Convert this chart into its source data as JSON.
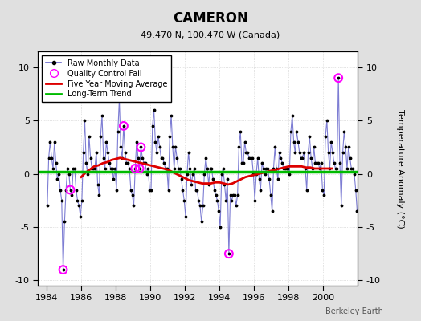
{
  "title": "CAMERON",
  "subtitle": "49.470 N, 100.470 W (Canada)",
  "ylabel": "Temperature Anomaly (°C)",
  "credit": "Berkeley Earth",
  "xlim": [
    1983.5,
    2002.0
  ],
  "ylim": [
    -10.5,
    11.5
  ],
  "yticks": [
    -10,
    -5,
    0,
    5,
    10
  ],
  "xticks": [
    1984,
    1986,
    1988,
    1990,
    1992,
    1994,
    1996,
    1998,
    2000
  ],
  "background_color": "#e0e0e0",
  "plot_bg_color": "#ffffff",
  "raw_line_color": "#6666cc",
  "raw_marker_color": "#000000",
  "moving_avg_color": "#dd0000",
  "trend_color": "#00bb00",
  "qc_fail_color": "#ff00ff",
  "raw_data_years": [
    1984.042,
    1984.125,
    1984.208,
    1984.292,
    1984.375,
    1984.458,
    1984.542,
    1984.625,
    1984.708,
    1984.792,
    1984.875,
    1984.958,
    1985.042,
    1985.125,
    1985.208,
    1985.292,
    1985.375,
    1985.458,
    1985.542,
    1985.625,
    1985.708,
    1985.792,
    1985.875,
    1985.958,
    1986.042,
    1986.125,
    1986.208,
    1986.292,
    1986.375,
    1986.458,
    1986.542,
    1986.625,
    1986.708,
    1986.792,
    1986.875,
    1986.958,
    1987.042,
    1987.125,
    1987.208,
    1987.292,
    1987.375,
    1987.458,
    1987.542,
    1987.625,
    1987.708,
    1987.792,
    1987.875,
    1987.958,
    1988.042,
    1988.125,
    1988.208,
    1988.292,
    1988.375,
    1988.458,
    1988.542,
    1988.625,
    1988.708,
    1988.792,
    1988.875,
    1988.958,
    1989.042,
    1989.125,
    1989.208,
    1989.292,
    1989.375,
    1989.458,
    1989.542,
    1989.625,
    1989.708,
    1989.792,
    1989.875,
    1989.958,
    1990.042,
    1990.125,
    1990.208,
    1990.292,
    1990.375,
    1990.458,
    1990.542,
    1990.625,
    1990.708,
    1990.792,
    1990.875,
    1990.958,
    1991.042,
    1991.125,
    1991.208,
    1991.292,
    1991.375,
    1991.458,
    1991.542,
    1991.625,
    1991.708,
    1991.792,
    1991.875,
    1991.958,
    1992.042,
    1992.125,
    1992.208,
    1992.292,
    1992.375,
    1992.458,
    1992.542,
    1992.625,
    1992.708,
    1992.792,
    1992.875,
    1992.958,
    1993.042,
    1993.125,
    1993.208,
    1993.292,
    1993.375,
    1993.458,
    1993.542,
    1993.625,
    1993.708,
    1993.792,
    1993.875,
    1993.958,
    1994.042,
    1994.125,
    1994.208,
    1994.292,
    1994.375,
    1994.458,
    1994.542,
    1994.625,
    1994.708,
    1994.792,
    1994.875,
    1994.958,
    1995.042,
    1995.125,
    1995.208,
    1995.292,
    1995.375,
    1995.458,
    1995.542,
    1995.625,
    1995.708,
    1995.792,
    1995.875,
    1995.958,
    1996.042,
    1996.125,
    1996.208,
    1996.292,
    1996.375,
    1996.458,
    1996.542,
    1996.625,
    1996.708,
    1996.792,
    1996.875,
    1996.958,
    1997.042,
    1997.125,
    1997.208,
    1997.292,
    1997.375,
    1997.458,
    1997.542,
    1997.625,
    1997.708,
    1997.792,
    1997.875,
    1997.958,
    1998.042,
    1998.125,
    1998.208,
    1998.292,
    1998.375,
    1998.458,
    1998.542,
    1998.625,
    1998.708,
    1998.792,
    1998.875,
    1998.958,
    1999.042,
    1999.125,
    1999.208,
    1999.292,
    1999.375,
    1999.458,
    1999.542,
    1999.625,
    1999.708,
    1999.792,
    1999.875,
    1999.958,
    2000.042,
    2000.125,
    2000.208,
    2000.292,
    2000.375,
    2000.458,
    2000.542,
    2000.625,
    2000.708,
    2000.792,
    2000.875,
    2000.958,
    2001.042,
    2001.125,
    2001.208,
    2001.292,
    2001.375,
    2001.458,
    2001.542,
    2001.625,
    2001.708,
    2001.792,
    2001.875,
    2001.958
  ],
  "raw_data_values": [
    -3.0,
    1.5,
    3.0,
    1.5,
    0.5,
    3.0,
    1.0,
    -0.5,
    0.0,
    -1.5,
    -2.5,
    -9.0,
    -4.5,
    -1.5,
    0.5,
    0.0,
    -1.5,
    -2.0,
    0.5,
    0.5,
    -1.5,
    -2.5,
    -3.0,
    -4.0,
    -2.5,
    2.0,
    5.0,
    1.0,
    0.0,
    3.5,
    1.5,
    0.5,
    0.5,
    0.5,
    2.0,
    -1.0,
    -2.0,
    3.5,
    5.5,
    1.5,
    0.5,
    3.0,
    2.0,
    1.0,
    0.5,
    0.5,
    -0.5,
    0.5,
    -1.5,
    4.0,
    7.0,
    2.5,
    1.5,
    4.5,
    2.0,
    1.0,
    1.0,
    0.5,
    -1.5,
    -2.0,
    -3.0,
    0.5,
    3.0,
    1.5,
    0.5,
    2.5,
    1.5,
    1.0,
    1.0,
    0.0,
    0.5,
    -1.5,
    -1.5,
    4.5,
    6.0,
    3.0,
    2.0,
    3.5,
    2.5,
    1.5,
    1.5,
    1.0,
    0.5,
    0.5,
    -1.5,
    3.5,
    5.5,
    2.5,
    0.5,
    2.5,
    1.5,
    0.5,
    0.5,
    -0.5,
    -1.5,
    -2.5,
    -4.0,
    0.0,
    2.0,
    0.5,
    -1.0,
    0.0,
    0.5,
    -1.5,
    -1.5,
    -2.5,
    -3.0,
    -4.5,
    -3.0,
    0.0,
    1.5,
    0.5,
    -1.0,
    0.5,
    0.5,
    -0.5,
    -1.5,
    -2.0,
    -2.5,
    -3.5,
    -5.0,
    0.0,
    0.5,
    -1.0,
    -2.5,
    -0.5,
    -7.5,
    -2.0,
    -2.5,
    -2.0,
    -2.0,
    -3.0,
    -2.0,
    2.5,
    4.0,
    1.0,
    1.0,
    3.0,
    2.0,
    2.0,
    1.5,
    1.5,
    1.5,
    0.0,
    -2.5,
    0.0,
    1.5,
    -0.5,
    -1.5,
    1.0,
    0.5,
    0.0,
    0.5,
    0.5,
    -0.5,
    -2.0,
    -3.5,
    0.5,
    2.5,
    0.5,
    -0.5,
    2.0,
    1.5,
    1.0,
    0.5,
    0.5,
    0.5,
    0.5,
    0.0,
    4.0,
    5.5,
    3.0,
    2.0,
    4.0,
    3.0,
    2.0,
    1.5,
    1.5,
    2.0,
    0.5,
    -1.5,
    2.0,
    3.5,
    1.5,
    0.5,
    2.5,
    1.0,
    1.0,
    1.0,
    0.5,
    1.0,
    -1.5,
    -2.0,
    3.5,
    5.0,
    2.0,
    0.5,
    3.0,
    2.0,
    1.0,
    0.5,
    0.5,
    9.0,
    1.0,
    -3.0,
    2.0,
    4.0,
    2.5,
    0.5,
    2.5,
    1.5,
    0.5,
    0.5,
    0.0,
    -1.5,
    -3.5
  ],
  "qc_fail_years": [
    1984.958,
    1985.375,
    1988.458,
    1989.125,
    1989.375,
    1989.458,
    1994.542,
    2000.875
  ],
  "qc_fail_values": [
    -9.0,
    -1.5,
    4.5,
    0.5,
    0.5,
    2.5,
    -7.5,
    9.0
  ],
  "moving_avg_years": [
    1986.0,
    1986.25,
    1986.5,
    1986.75,
    1987.0,
    1987.25,
    1987.5,
    1987.75,
    1988.0,
    1988.25,
    1988.5,
    1988.75,
    1989.0,
    1989.25,
    1989.5,
    1989.75,
    1990.0,
    1990.25,
    1990.5,
    1990.75,
    1991.0,
    1991.25,
    1991.5,
    1991.75,
    1992.0,
    1992.25,
    1992.5,
    1992.75,
    1993.0,
    1993.25,
    1993.5,
    1993.75,
    1994.0,
    1994.25,
    1994.5,
    1994.75,
    1995.0,
    1995.25,
    1995.5,
    1995.75,
    1996.0,
    1996.25,
    1996.5,
    1996.75,
    1997.0,
    1997.25,
    1997.5,
    1997.75,
    1998.0,
    1998.25,
    1998.5,
    1998.75,
    1999.0,
    1999.25,
    1999.5,
    1999.75,
    2000.0,
    2000.25,
    2000.5
  ],
  "moving_avg_values": [
    -0.3,
    0.1,
    0.4,
    0.7,
    0.8,
    1.0,
    1.1,
    1.3,
    1.4,
    1.5,
    1.4,
    1.3,
    1.2,
    1.1,
    1.0,
    0.9,
    0.8,
    0.7,
    0.6,
    0.5,
    0.4,
    0.2,
    0.0,
    -0.2,
    -0.4,
    -0.6,
    -0.7,
    -0.8,
    -0.9,
    -0.9,
    -0.9,
    -0.8,
    -0.8,
    -0.9,
    -1.0,
    -0.9,
    -0.7,
    -0.5,
    -0.3,
    -0.2,
    -0.1,
    0.0,
    0.1,
    0.2,
    0.3,
    0.4,
    0.5,
    0.6,
    0.7,
    0.7,
    0.7,
    0.7,
    0.6,
    0.6,
    0.5,
    0.5,
    0.5,
    0.5,
    0.5
  ],
  "trend_years": [
    1983.5,
    2002.0
  ],
  "trend_values": [
    0.2,
    0.2
  ]
}
